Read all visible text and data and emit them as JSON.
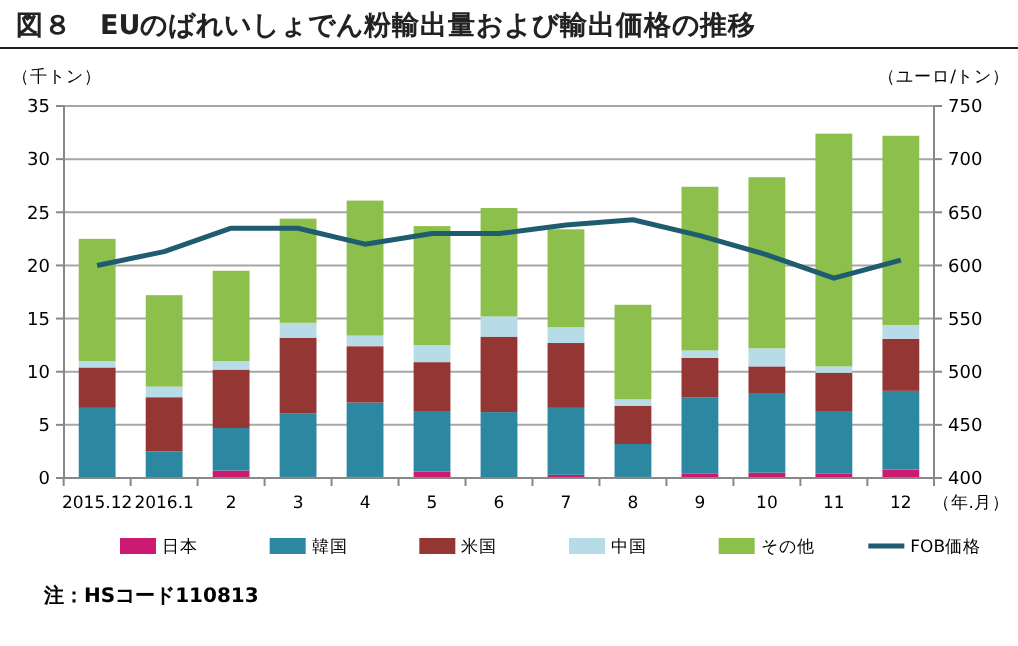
{
  "chart_data": {
    "type": "bar",
    "stacked": true,
    "title": "図８　EUのばれいしょでん粉輸出量および輸出価格の推移",
    "ylabel": "（千トン）",
    "y2label": "（ユーロ/トン）",
    "xlabel": "（年.月）",
    "categories": [
      "2015.12",
      "2016.1",
      "2",
      "3",
      "4",
      "5",
      "6",
      "7",
      "8",
      "9",
      "10",
      "11",
      "12"
    ],
    "series": [
      {
        "name": "日本",
        "color": "#cc1a73",
        "values": [
          0,
          null,
          0.7,
          0.1,
          0.1,
          0.6,
          null,
          0.3,
          0.1,
          0.4,
          0.5,
          0.4,
          0.8
        ]
      },
      {
        "name": "韓国",
        "color": "#2b88a0",
        "values": [
          6.6,
          2.5,
          4.0,
          6.0,
          7.0,
          5.7,
          6.2,
          6.3,
          3.1,
          7.2,
          7.5,
          5.9,
          7.4
        ]
      },
      {
        "name": "米国",
        "color": "#943634",
        "values": [
          3.8,
          5.1,
          5.5,
          7.1,
          5.3,
          4.6,
          7.1,
          6.1,
          3.6,
          3.7,
          2.5,
          3.6,
          4.9
        ]
      },
      {
        "name": "中国",
        "color": "#b7dbe7",
        "values": [
          0.6,
          1.0,
          0.8,
          1.4,
          1.0,
          1.6,
          1.9,
          1.5,
          0.6,
          0.7,
          1.7,
          0.6,
          1.3
        ]
      },
      {
        "name": "その他",
        "color": "#8cbf4b",
        "values": [
          11.5,
          8.6,
          8.5,
          9.8,
          12.7,
          11.2,
          10.2,
          9.2,
          8.9,
          15.4,
          16.1,
          21.9,
          17.8
        ]
      },
      {
        "name": "FOB価格",
        "type": "line",
        "axis": "y2",
        "color": "#1f5c70",
        "values": [
          600,
          613,
          635,
          635,
          620,
          630,
          630,
          638,
          643,
          628,
          610,
          588,
          605
        ]
      }
    ],
    "ylim": [
      0,
      35
    ],
    "yticks": [
      0,
      5,
      10,
      15,
      20,
      25,
      30,
      35
    ],
    "y2lim": [
      400,
      750
    ],
    "y2ticks": [
      400,
      450,
      500,
      550,
      600,
      650,
      700,
      750
    ],
    "grid": "y",
    "legend": "bottom",
    "marker": "none",
    "annotations": [
      "注：HSコード110813"
    ]
  }
}
